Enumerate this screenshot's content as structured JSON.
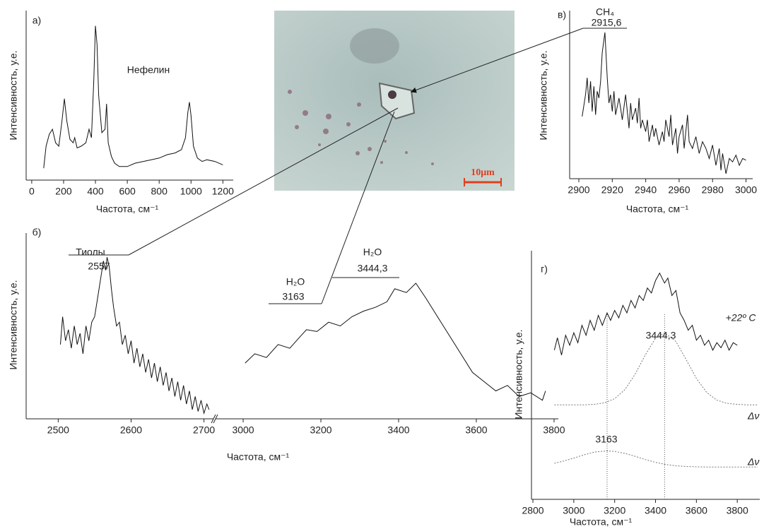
{
  "chart_data": [
    {
      "type": "line",
      "panel_label": "а)",
      "xlabel": "Частота, см⁻¹",
      "ylabel": "Интенсивность, у.е.",
      "annotations": [
        "Нефелин"
      ],
      "xlim": [
        -35,
        1265
      ],
      "ylim": [
        0,
        100
      ],
      "xticks": [
        0,
        200,
        400,
        600,
        800,
        1000,
        1200
      ],
      "series": [
        {
          "color": "#111111",
          "dash": false,
          "x": [
            75,
            90,
            110,
            130,
            150,
            170,
            190,
            205,
            220,
            240,
            260,
            270,
            285,
            310,
            340,
            360,
            375,
            390,
            400,
            410,
            420,
            440,
            460,
            470,
            480,
            500,
            520,
            550,
            600,
            650,
            700,
            750,
            800,
            850,
            900,
            940,
            965,
            980,
            990,
            1000,
            1015,
            1040,
            1070,
            1100,
            1150,
            1200
          ],
          "values": [
            7,
            20,
            27,
            30,
            22,
            20,
            35,
            48,
            35,
            24,
            22,
            25,
            19,
            20,
            22,
            30,
            25,
            60,
            91,
            80,
            50,
            28,
            30,
            45,
            22,
            14,
            10,
            8,
            8,
            10,
            11,
            12,
            13,
            15,
            16,
            18,
            25,
            40,
            46,
            38,
            20,
            13,
            11,
            12,
            11,
            9
          ]
        }
      ]
    },
    {
      "type": "line",
      "panel_label": "в)",
      "xlabel": "Частота, см⁻¹",
      "ylabel": "Интенсивность, у.е.",
      "annotations": [
        "CH₄",
        "2915,6"
      ],
      "xlim": [
        2894.5,
        3004
      ],
      "ylim": [
        0,
        100
      ],
      "xticks": [
        2900,
        2920,
        2940,
        2960,
        2980,
        3000
      ],
      "series": [
        {
          "color": "#111111",
          "dash": false,
          "x": [
            2902,
            2904,
            2905,
            2906,
            2907,
            2908,
            2909,
            2910,
            2911,
            2912,
            2913,
            2914,
            2915.6,
            2917,
            2918,
            2919,
            2920,
            2921,
            2922,
            2924,
            2925,
            2926,
            2928,
            2929,
            2930,
            2931,
            2932,
            2934,
            2935,
            2936,
            2937,
            2938,
            2940,
            2941,
            2942,
            2944,
            2945,
            2946,
            2948,
            2950,
            2951,
            2952,
            2954,
            2955,
            2956,
            2958,
            2959,
            2960,
            2962,
            2963,
            2964,
            2965,
            2966,
            2968,
            2970,
            2972,
            2974,
            2976,
            2978,
            2980,
            2982,
            2984,
            2985,
            2986,
            2988,
            2990,
            2992,
            2994,
            2996,
            2998,
            3000
          ],
          "values": [
            37,
            50,
            60,
            45,
            58,
            40,
            55,
            38,
            52,
            48,
            58,
            75,
            87,
            60,
            45,
            50,
            40,
            52,
            38,
            48,
            42,
            35,
            50,
            40,
            30,
            45,
            35,
            42,
            33,
            48,
            30,
            35,
            28,
            35,
            22,
            32,
            25,
            30,
            20,
            28,
            22,
            35,
            25,
            38,
            20,
            30,
            15,
            25,
            32,
            18,
            28,
            38,
            22,
            18,
            25,
            15,
            22,
            18,
            12,
            20,
            8,
            18,
            5,
            15,
            3,
            12,
            10,
            14,
            8,
            12,
            11
          ]
        }
      ]
    },
    {
      "type": "line",
      "panel_label": "б)",
      "ylabel": "Интенсивность, у.е.",
      "annotations": [
        "Тиолы",
        "2557"
      ],
      "xlim": [
        2456,
        2713
      ],
      "ylim": [
        0,
        100
      ],
      "xticks": [
        2500,
        2600,
        2700
      ],
      "series": [
        {
          "color": "#111111",
          "dash": false,
          "x": [
            2503,
            2506,
            2510,
            2514,
            2518,
            2522,
            2526,
            2530,
            2534,
            2538,
            2542,
            2546,
            2550,
            2554,
            2558,
            2562,
            2565,
            2567,
            2570,
            2573,
            2576,
            2580,
            2584,
            2588,
            2592,
            2596,
            2600,
            2604,
            2608,
            2612,
            2616,
            2620,
            2624,
            2628,
            2632,
            2636,
            2640,
            2644,
            2648,
            2652,
            2656,
            2660,
            2664,
            2668,
            2672,
            2676,
            2680,
            2684,
            2688,
            2692,
            2696,
            2700,
            2704,
            2707
          ],
          "values": [
            40,
            55,
            42,
            48,
            38,
            50,
            40,
            46,
            35,
            50,
            42,
            52,
            55,
            65,
            75,
            85,
            80,
            87,
            82,
            70,
            60,
            50,
            52,
            40,
            45,
            35,
            42,
            30,
            38,
            28,
            35,
            25,
            32,
            22,
            30,
            20,
            28,
            18,
            25,
            15,
            22,
            12,
            20,
            10,
            18,
            8,
            15,
            5,
            12,
            4,
            10,
            3,
            8,
            5
          ]
        }
      ]
    },
    {
      "type": "line",
      "xlabel": "Частота, см⁻¹",
      "annotations": [
        "H₂O",
        "3163",
        "H₂O",
        "3444,3"
      ],
      "xlim": [
        2929,
        3811
      ],
      "ylim": [
        0,
        100
      ],
      "xticks": [
        3000,
        3200,
        3400,
        3600,
        3800
      ],
      "series": [
        {
          "color": "#111111",
          "dash": false,
          "x": [
            3005,
            3030,
            3060,
            3090,
            3120,
            3150,
            3163,
            3190,
            3220,
            3250,
            3280,
            3310,
            3340,
            3370,
            3390,
            3420,
            3444.3,
            3470,
            3500,
            3530,
            3560,
            3590,
            3620,
            3650,
            3680,
            3710,
            3740,
            3770,
            3778
          ],
          "values": [
            30,
            35,
            33,
            40,
            38,
            45,
            48,
            47,
            52,
            50,
            55,
            58,
            60,
            63,
            70,
            68,
            73,
            65,
            55,
            45,
            35,
            25,
            20,
            15,
            18,
            12,
            14,
            10,
            15
          ]
        }
      ]
    },
    {
      "type": "line",
      "panel_label": "г)",
      "xlabel": "Частота, см⁻¹",
      "ylabel": "Интенсивность, у.е.",
      "annotations": [
        "+22º C",
        "3444,3",
        "3163",
        "Δν",
        "Δν"
      ],
      "xlim": [
        2793,
        3910
      ],
      "ylim": [
        0,
        100
      ],
      "xticks": [
        2800,
        3000,
        3200,
        3400,
        3600,
        3800
      ],
      "vlines": [
        3163,
        3444.3
      ],
      "series": [
        {
          "color": "#111111",
          "dash": false,
          "x": [
            2905,
            2920,
            2940,
            2960,
            2980,
            3000,
            3020,
            3040,
            3060,
            3080,
            3100,
            3120,
            3140,
            3163,
            3180,
            3200,
            3220,
            3240,
            3260,
            3280,
            3300,
            3320,
            3340,
            3360,
            3380,
            3400,
            3420,
            3444.3,
            3460,
            3480,
            3500,
            3520,
            3540,
            3560,
            3580,
            3600,
            3620,
            3640,
            3660,
            3680,
            3700,
            3720,
            3740,
            3760,
            3780,
            3800
          ],
          "values": [
            60,
            65,
            58,
            66,
            62,
            67,
            63,
            70,
            66,
            72,
            68,
            74,
            70,
            75,
            72,
            76,
            73,
            78,
            75,
            80,
            77,
            82,
            80,
            85,
            83,
            88,
            91,
            87,
            89,
            82,
            84,
            75,
            72,
            68,
            70,
            64,
            66,
            62,
            64,
            60,
            63,
            61,
            64,
            60,
            63,
            62
          ]
        },
        {
          "color": "#777777",
          "dash": true,
          "x": [
            2905,
            2950,
            3000,
            3050,
            3100,
            3150,
            3200,
            3250,
            3300,
            3350,
            3400,
            3444.3,
            3500,
            3550,
            3600,
            3650,
            3700,
            3750,
            3800,
            3850,
            3900
          ],
          "values": [
            38,
            38,
            38,
            38,
            38.2,
            38.8,
            40.5,
            44.1,
            50.3,
            58.1,
            64.8,
            67,
            63.5,
            56.2,
            48.6,
            43,
            39.9,
            38.6,
            38.2,
            38,
            38
          ]
        },
        {
          "color": "#777777",
          "dash": true,
          "x": [
            2905,
            2950,
            3000,
            3050,
            3100,
            3163,
            3200,
            3250,
            3300,
            3350,
            3400,
            3450,
            3500,
            3550,
            3600,
            3650,
            3700,
            3750,
            3800,
            3850,
            3900
          ],
          "values": [
            14.5,
            15.4,
            16.6,
            17.9,
            19,
            19.5,
            19.3,
            18.5,
            17.3,
            16,
            14.9,
            14,
            13.5,
            13.2,
            13.1,
            13,
            13,
            13,
            13,
            13,
            13
          ]
        }
      ]
    }
  ],
  "image": {
    "scale_label": "10μm"
  }
}
